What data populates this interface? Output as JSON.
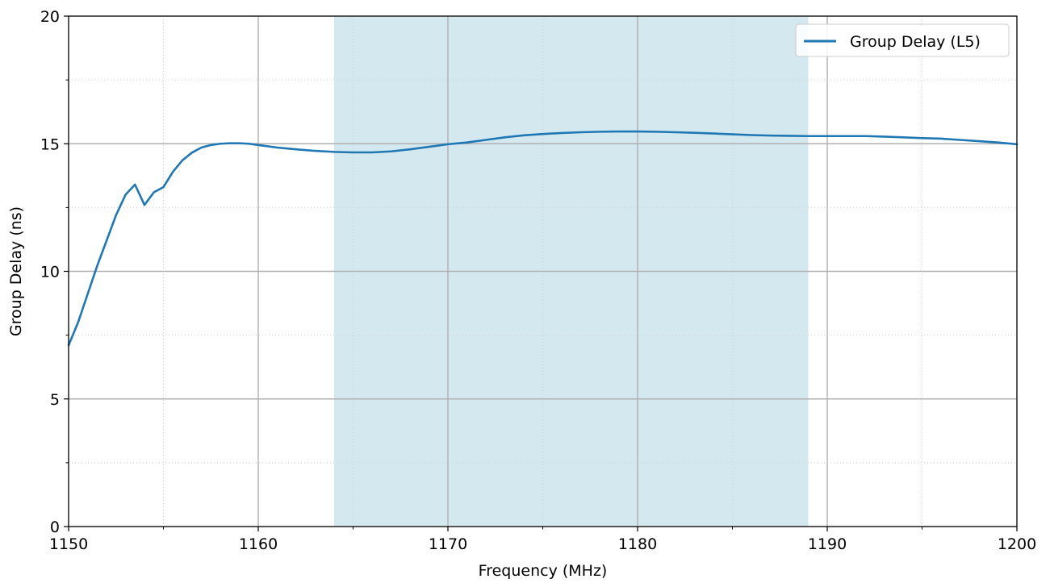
{
  "chart_data": {
    "type": "line",
    "title": "",
    "xlabel": "Frequency (MHz)",
    "ylabel": "Group Delay (ns)",
    "xlim": [
      1150,
      1200
    ],
    "ylim": [
      0,
      20
    ],
    "xticks": [
      1150,
      1160,
      1170,
      1180,
      1190,
      1200
    ],
    "yticks": [
      0,
      5,
      10,
      15,
      20
    ],
    "xtick_labels": [
      "1150",
      "1160",
      "1170",
      "1180",
      "1190",
      "1200"
    ],
    "ytick_labels": [
      "0",
      "5",
      "10",
      "15",
      "20"
    ],
    "x_minor_ticks": [
      1155,
      1165,
      1175,
      1185,
      1195
    ],
    "y_minor_ticks": [
      2.5,
      7.5,
      12.5,
      17.5
    ],
    "grid": true,
    "legend_position": "top-right",
    "shaded_band": {
      "x_start": 1164,
      "x_end": 1189,
      "color": "#d4e8f0"
    },
    "series": [
      {
        "name": "Group Delay (L5)",
        "color": "#1f77b4",
        "x": [
          1150,
          1150.5,
          1151,
          1151.5,
          1152,
          1152.5,
          1153,
          1153.5,
          1154,
          1154.5,
          1155,
          1155.5,
          1156,
          1156.5,
          1157,
          1157.5,
          1158,
          1158.5,
          1159,
          1159.5,
          1160,
          1161,
          1162,
          1163,
          1164,
          1165,
          1166,
          1167,
          1168,
          1169,
          1170,
          1171,
          1172,
          1173,
          1174,
          1175,
          1176,
          1177,
          1178,
          1179,
          1180,
          1181,
          1182,
          1183,
          1184,
          1185,
          1186,
          1187,
          1188,
          1189,
          1190,
          1191,
          1192,
          1193,
          1194,
          1195,
          1196,
          1197,
          1198,
          1199,
          1200
        ],
        "y": [
          7.1,
          8.0,
          9.1,
          10.2,
          11.2,
          12.2,
          13.0,
          13.4,
          12.6,
          13.1,
          13.3,
          13.9,
          14.35,
          14.65,
          14.85,
          14.95,
          15.0,
          15.02,
          15.02,
          15.0,
          14.95,
          14.85,
          14.78,
          14.72,
          14.68,
          14.66,
          14.66,
          14.7,
          14.78,
          14.88,
          14.98,
          15.05,
          15.15,
          15.25,
          15.33,
          15.38,
          15.42,
          15.45,
          15.47,
          15.48,
          15.48,
          15.47,
          15.45,
          15.43,
          15.4,
          15.37,
          15.34,
          15.32,
          15.31,
          15.3,
          15.3,
          15.3,
          15.3,
          15.28,
          15.25,
          15.22,
          15.2,
          15.15,
          15.1,
          15.05,
          14.98
        ]
      }
    ]
  }
}
